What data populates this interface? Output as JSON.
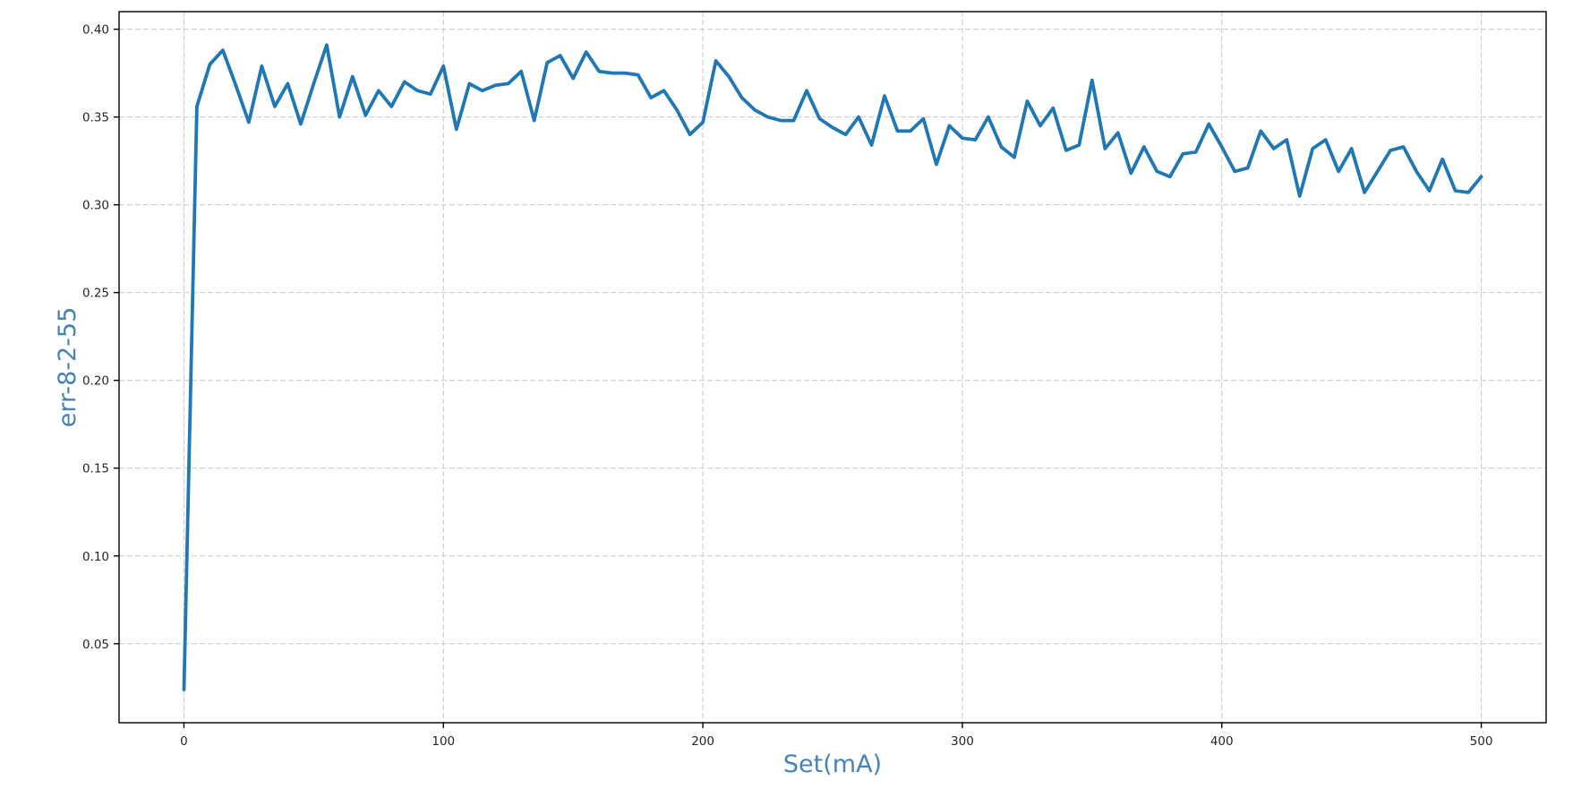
{
  "chart_data": {
    "type": "line",
    "title": "",
    "xlabel": "Set(mA)",
    "ylabel": "err-8-2-55",
    "xlim": [
      -25,
      525
    ],
    "ylim": [
      0.005,
      0.41
    ],
    "grid": true,
    "grid_style": "dashed",
    "legend": "none",
    "colors": {
      "line": "#1f77b4",
      "axis_label": "#4682b4",
      "tick_label": "#262626",
      "grid": "#c9c9c9",
      "spine": "#000000",
      "background": "#ffffff"
    },
    "line_width": 3.8,
    "xtick_values": [
      0,
      100,
      200,
      300,
      400,
      500
    ],
    "xtick_labels": [
      "0",
      "100",
      "200",
      "300",
      "400",
      "500"
    ],
    "ytick_values": [
      0.05,
      0.1,
      0.15,
      0.2,
      0.25,
      0.3,
      0.35,
      0.4
    ],
    "ytick_labels": [
      "0.05",
      "0.10",
      "0.15",
      "0.20",
      "0.25",
      "0.30",
      "0.35",
      "0.40"
    ],
    "series": [
      {
        "name": "err-8-2-55",
        "x": [
          0,
          5,
          10,
          15,
          20,
          25,
          30,
          35,
          40,
          45,
          50,
          55,
          60,
          65,
          70,
          75,
          80,
          85,
          90,
          95,
          100,
          105,
          110,
          115,
          120,
          125,
          130,
          135,
          140,
          145,
          150,
          155,
          160,
          165,
          170,
          175,
          180,
          185,
          190,
          195,
          200,
          205,
          210,
          215,
          220,
          225,
          230,
          235,
          240,
          245,
          250,
          255,
          260,
          265,
          270,
          275,
          280,
          285,
          290,
          295,
          300,
          305,
          310,
          315,
          320,
          325,
          330,
          335,
          340,
          345,
          350,
          355,
          360,
          365,
          370,
          375,
          380,
          385,
          390,
          395,
          400,
          405,
          410,
          415,
          420,
          425,
          430,
          435,
          440,
          445,
          450,
          455,
          460,
          465,
          470,
          475,
          480,
          485,
          490,
          495,
          500
        ],
        "y": [
          0.024,
          0.356,
          0.38,
          0.388,
          0.368,
          0.347,
          0.379,
          0.356,
          0.369,
          0.346,
          0.369,
          0.391,
          0.35,
          0.373,
          0.351,
          0.365,
          0.356,
          0.37,
          0.365,
          0.363,
          0.379,
          0.343,
          0.369,
          0.365,
          0.368,
          0.369,
          0.376,
          0.348,
          0.381,
          0.385,
          0.372,
          0.387,
          0.376,
          0.375,
          0.375,
          0.374,
          0.361,
          0.365,
          0.354,
          0.34,
          0.347,
          0.382,
          0.373,
          0.361,
          0.354,
          0.35,
          0.348,
          0.348,
          0.365,
          0.349,
          0.344,
          0.34,
          0.35,
          0.334,
          0.362,
          0.342,
          0.342,
          0.349,
          0.323,
          0.345,
          0.338,
          0.337,
          0.35,
          0.333,
          0.327,
          0.359,
          0.345,
          0.355,
          0.331,
          0.334,
          0.371,
          0.332,
          0.341,
          0.318,
          0.333,
          0.319,
          0.316,
          0.329,
          0.33,
          0.346,
          0.333,
          0.319,
          0.321,
          0.342,
          0.332,
          0.337,
          0.305,
          0.332,
          0.337,
          0.319,
          0.332,
          0.307,
          0.319,
          0.331,
          0.333,
          0.319,
          0.308,
          0.326,
          0.308,
          0.307,
          0.316
        ]
      }
    ]
  }
}
